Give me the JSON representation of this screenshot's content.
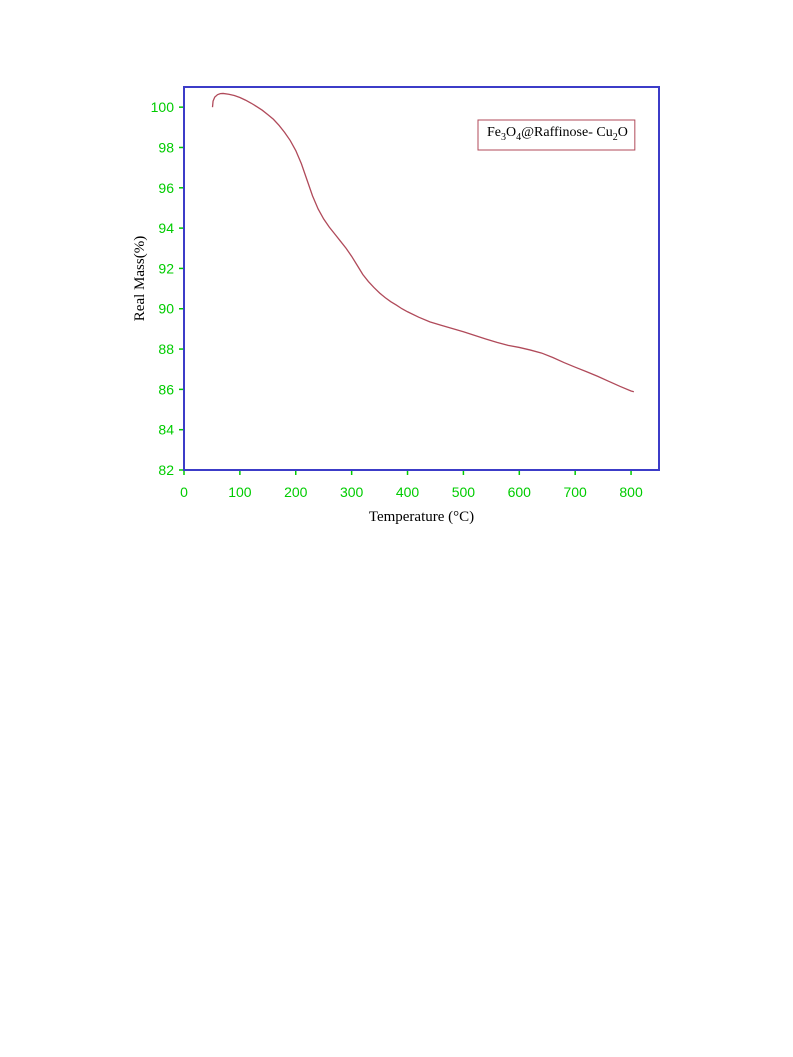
{
  "chart_data": {
    "type": "line",
    "xlabel": "Temperature (°C)",
    "ylabel": "Real Mass(%)",
    "xlim": [
      0,
      850
    ],
    "ylim": [
      82,
      101
    ],
    "xticks": [
      0,
      100,
      200,
      300,
      400,
      500,
      600,
      700,
      800
    ],
    "yticks": [
      82,
      84,
      86,
      88,
      90,
      92,
      94,
      96,
      98,
      100
    ],
    "grid": false,
    "legend_position": "top-right",
    "series": [
      {
        "name": "Fe3O4@Raffinose- Cu2O",
        "name_parts": [
          {
            "text": "Fe",
            "sub": false
          },
          {
            "text": "3",
            "sub": true
          },
          {
            "text": "O",
            "sub": false
          },
          {
            "text": "4",
            "sub": true
          },
          {
            "text": "@Raffinose- Cu",
            "sub": false
          },
          {
            "text": "2",
            "sub": true
          },
          {
            "text": "O",
            "sub": false
          }
        ],
        "color": "#b04a5a",
        "x": [
          51,
          52,
          55,
          60,
          65,
          70,
          80,
          90,
          100,
          110,
          120,
          130,
          140,
          150,
          160,
          170,
          180,
          190,
          200,
          210,
          220,
          230,
          240,
          250,
          260,
          270,
          280,
          290,
          300,
          310,
          320,
          330,
          340,
          350,
          360,
          370,
          380,
          390,
          400,
          420,
          440,
          460,
          480,
          500,
          520,
          540,
          560,
          580,
          600,
          620,
          640,
          660,
          680,
          700,
          720,
          740,
          760,
          780,
          800,
          805
        ],
        "y": [
          100.0,
          100.3,
          100.5,
          100.62,
          100.67,
          100.68,
          100.64,
          100.58,
          100.48,
          100.35,
          100.2,
          100.03,
          99.85,
          99.63,
          99.4,
          99.1,
          98.75,
          98.35,
          97.85,
          97.2,
          96.4,
          95.6,
          94.95,
          94.45,
          94.05,
          93.7,
          93.35,
          93.0,
          92.6,
          92.15,
          91.7,
          91.35,
          91.05,
          90.78,
          90.55,
          90.35,
          90.18,
          90.0,
          89.85,
          89.58,
          89.35,
          89.18,
          89.02,
          88.86,
          88.68,
          88.5,
          88.33,
          88.18,
          88.08,
          87.95,
          87.8,
          87.58,
          87.33,
          87.1,
          86.88,
          86.65,
          86.4,
          86.15,
          85.92,
          85.88
        ]
      }
    ]
  },
  "colors": {
    "axis_frame": "#3c3cc8",
    "tick_labels": "#00cc00",
    "curve": "#b04a5a",
    "legend_border": "#b04a5a"
  }
}
